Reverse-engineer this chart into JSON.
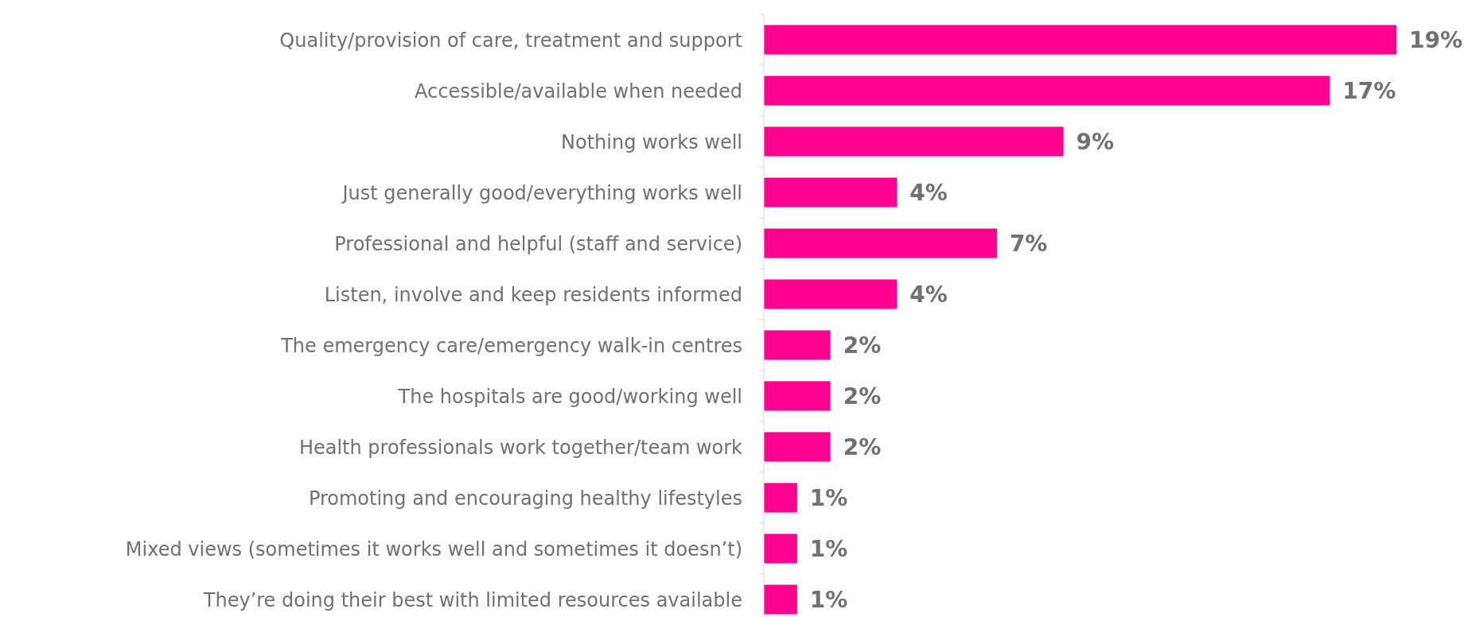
{
  "chart_data": {
    "type": "bar",
    "orientation": "horizontal",
    "categories": [
      "Quality/provision of care, treatment and support",
      "Accessible/available when needed",
      "Nothing works well",
      "Just generally good/everything works well",
      "Professional and helpful (staff and service)",
      "Listen, involve and keep residents informed",
      "The emergency care/emergency walk-in centres",
      "The hospitals are good/working well",
      "Health professionals work together/team work",
      "Promoting and encouraging healthy lifestyles",
      "Mixed views (sometimes it works well and sometimes it doesn’t)",
      "They’re doing their best with limited resources available"
    ],
    "value_labels": [
      "19%",
      "17%",
      "9%",
      "4%",
      "7%",
      "4%",
      "2%",
      "2%",
      "2%",
      "1%",
      "1%",
      "1%"
    ],
    "values": [
      19,
      17,
      9,
      4,
      7,
      4,
      2,
      2,
      2,
      1,
      1,
      1
    ],
    "color": "#ff0090"
  }
}
